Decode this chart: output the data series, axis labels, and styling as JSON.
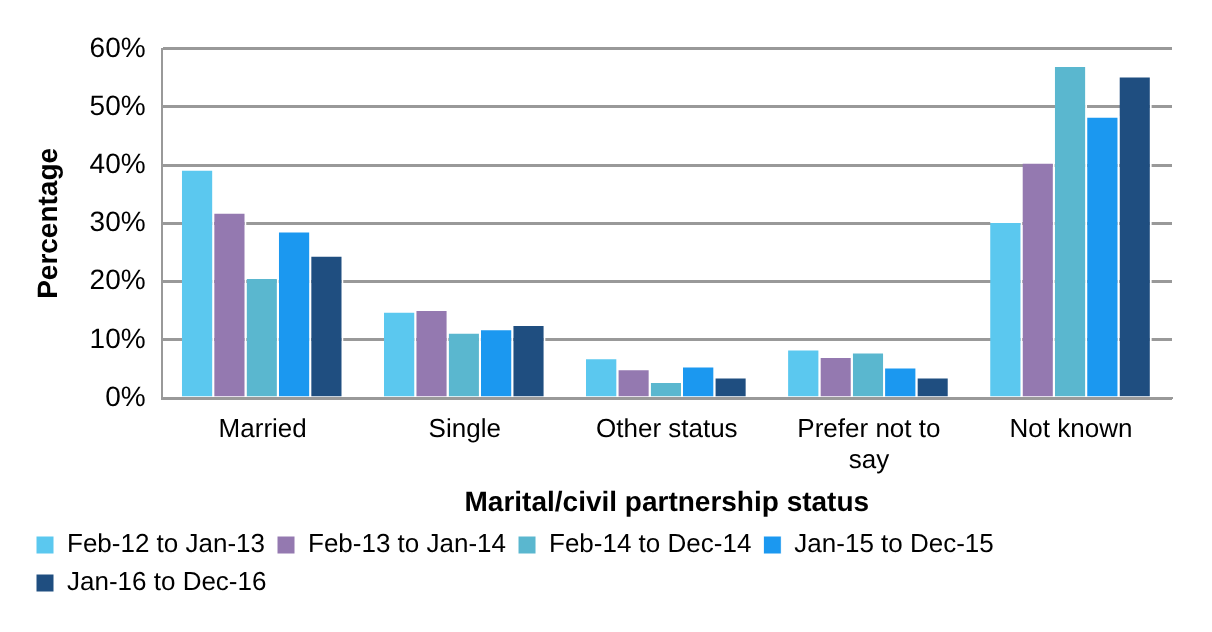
{
  "chart_data": {
    "type": "bar",
    "xlabel": "Marital/civil partnership status",
    "ylabel": "Percentage",
    "categories": [
      "Married",
      "Single",
      "Other status",
      "Prefer not to say",
      "Not known"
    ],
    "series": [
      {
        "name": "Feb-12 to Jan-13",
        "color": "#5bc8ef",
        "values": [
          39.4,
          15.0,
          7.0,
          8.5,
          30.4
        ]
      },
      {
        "name": "Feb-13 to Jan-14",
        "color": "#9479b0",
        "values": [
          32.0,
          15.3,
          5.1,
          7.2,
          40.6
        ]
      },
      {
        "name": "Feb-14 to Dec-14",
        "color": "#5ab7cf",
        "values": [
          20.8,
          11.4,
          2.9,
          8.0,
          57.2
        ]
      },
      {
        "name": "Jan-15 to Dec-15",
        "color": "#1b98f0",
        "values": [
          28.8,
          12.0,
          5.6,
          5.4,
          48.5
        ]
      },
      {
        "name": "Jan-16 to Dec-16",
        "color": "#1f4e80",
        "values": [
          24.6,
          12.7,
          3.7,
          3.7,
          55.4
        ]
      }
    ],
    "ylim": [
      0,
      60
    ],
    "yticks": [
      {
        "value": 0,
        "label": "0%"
      },
      {
        "value": 10,
        "label": "10%"
      },
      {
        "value": 20,
        "label": "20%"
      },
      {
        "value": 30,
        "label": "30%"
      },
      {
        "value": 40,
        "label": "40%"
      },
      {
        "value": 50,
        "label": "50%"
      },
      {
        "value": 60,
        "label": "60%"
      }
    ],
    "grid": "y",
    "legend": "bottom"
  }
}
